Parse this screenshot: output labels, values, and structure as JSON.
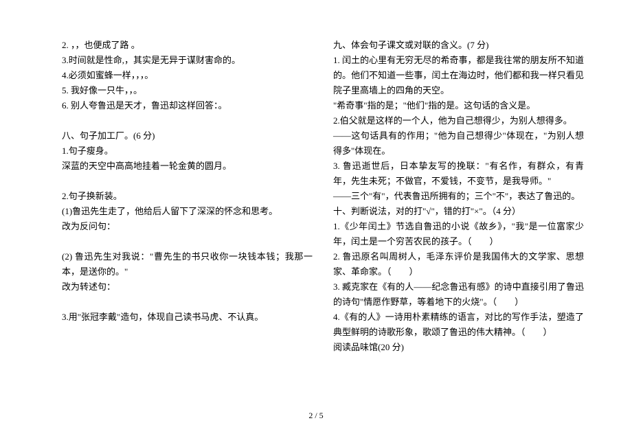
{
  "pagenum": "2 / 5",
  "left": {
    "l1": "2. ，，也便成了路 。",
    "l2": "3.时间就是性命,，其实是无异于谋财害命的。",
    "l3": "4.必须如蜜蜂一样，，，。",
    "l4": "5. 我好像一只牛，，。",
    "l5": "6. 别人夸鲁迅是天才，鲁迅却这样回答：。",
    "s8h": "八、句子加工厂。(6 分)",
    "s8_1h": "1.句子瘦身。",
    "s8_1t": "深蓝的天空中高高地挂着一轮金黄的圆月。",
    "s8_2h": "2.句子换新装。",
    "s8_2a": "(1)鲁迅先生走了，他给后人留下了深深的怀念和思考。",
    "s8_2a2": "改为反问句：",
    "s8_2b": "(2) 鲁迅先生对我说：\"曹先生的书只收你一块钱本钱；我那一本，是送你的。\"",
    "s8_2b2": "改为转述句：",
    "s8_3": "3.用\"张冠李戴\"造句，体现自己读书马虎、不认真。"
  },
  "right": {
    "s9h": "九、体会句子课文或对联的含义。(7 分)",
    "s9_1a": "1. 闰土的心里有无穷无尽的希奇事，都是我往常的朋友所不知道的。他们不知道一些事，闰土在海边时，他们都和我一样只看见院子里高墙上的四角的天空。",
    "s9_1b": "\"希奇事\"指的是；\"他们\"指的是。这句话的含义是。",
    "s9_2a": "2.伯父就是这样的一个人，他为自己想得少，为别人想得多。",
    "s9_2b": "——这句话具有的作用；\"他为自己想得少\"体现在，\"为别人想得多\"体现在。",
    "s9_3a": "3. 鲁迅逝世后，日本挚友写的挽联：\"有名作，有群众，有青年，先生未死；不做官，不爱钱，不变节，是我导师。\"",
    "s9_3b": "——三个\"有\"，代表鲁迅所拥有的；三个\"不\"，表达了鲁迅的。",
    "s10h": "十、判断说法，对的打\"√\"，错的打\"×\"。（4 分）",
    "s10_1": "1.《少年闰土》节选自鲁迅的小说《故乡》，\"我\"是一位富家少年，闰土是一个穷苦农民的孩子。（　　）",
    "s10_2": "2. 鲁迅原名叫周树人，毛泽东评价是我国伟大的文学家、思想家、革命家。（　　）",
    "s10_3": "3. 臧克家在《有的人——纪念鲁迅有感》的诗中直接引用了鲁迅的诗句\"情愿作野草，等着地下的火烧\"。（　　）",
    "s10_4": "4.《有的人》一诗用朴素精练的语言，对比的写作手法，塑造了典型鲜明的诗歌形象，歌颂了鲁迅的伟大精神。（　　）",
    "read": "阅读品味馆(20 分)"
  }
}
